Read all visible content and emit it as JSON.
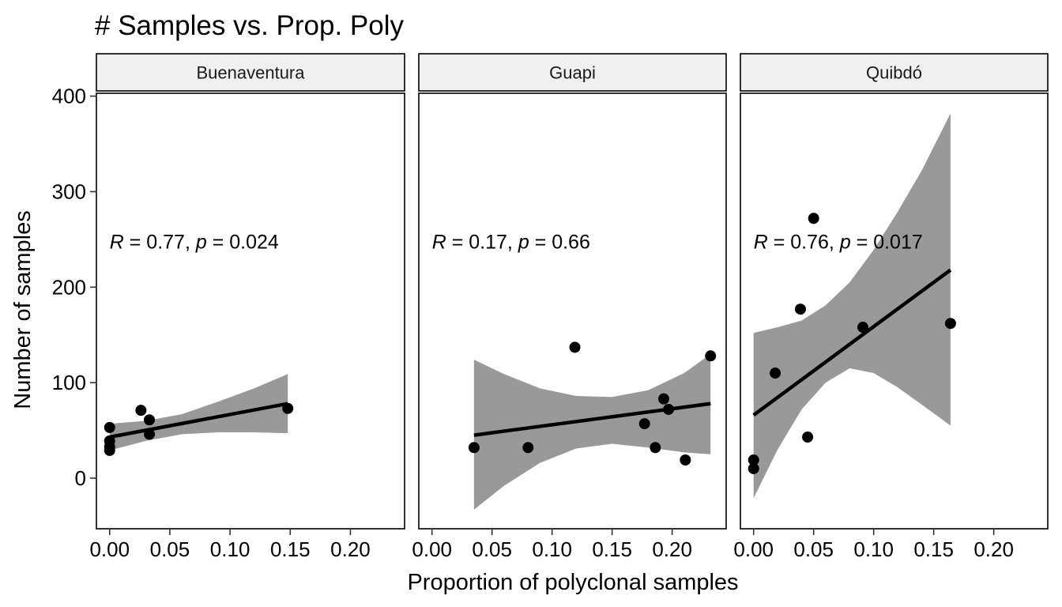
{
  "chart_data": {
    "type": "scatter",
    "title": "# Samples vs. Prop. Poly",
    "xlabel": "Proportion of polyclonal samples",
    "ylabel": "Number of samples",
    "xlim": [
      -0.011,
      0.245
    ],
    "ylim": [
      -53,
      403
    ],
    "x_ticks": [
      0.0,
      0.05,
      0.1,
      0.15,
      0.2
    ],
    "x_tick_labels": [
      "0.00",
      "0.05",
      "0.10",
      "0.15",
      "0.20"
    ],
    "y_ticks": [
      0,
      100,
      200,
      300,
      400
    ],
    "y_tick_labels": [
      "0",
      "100",
      "200",
      "300",
      "400"
    ],
    "grid": false,
    "facets": [
      {
        "label": "Buenaventura",
        "annotation": {
          "r_symbol": "R",
          "r_text": " = 0.77, ",
          "p_symbol": "p",
          "p_text": " = 0.024",
          "x": 0.0,
          "y": 248
        },
        "points": [
          {
            "x": 0.0,
            "y": 53
          },
          {
            "x": 0.0,
            "y": 39
          },
          {
            "x": 0.0,
            "y": 33
          },
          {
            "x": 0.0,
            "y": 29
          },
          {
            "x": 0.026,
            "y": 71
          },
          {
            "x": 0.033,
            "y": 61
          },
          {
            "x": 0.033,
            "y": 46
          },
          {
            "x": 0.148,
            "y": 73
          }
        ],
        "fit_line": {
          "x": [
            0.0,
            0.148
          ],
          "y": [
            43,
            78
          ]
        },
        "confidence_band": {
          "x": [
            0.0,
            0.03,
            0.06,
            0.09,
            0.12,
            0.148
          ],
          "lower": [
            29,
            39,
            46,
            48,
            48,
            47
          ],
          "upper": [
            57,
            60,
            67,
            80,
            94,
            109
          ]
        }
      },
      {
        "label": "Guapi",
        "annotation": {
          "r_symbol": "R",
          "r_text": " = 0.17, ",
          "p_symbol": "p",
          "p_text": " = 0.66",
          "x": 0.0,
          "y": 248
        },
        "points": [
          {
            "x": 0.035,
            "y": 32
          },
          {
            "x": 0.08,
            "y": 32
          },
          {
            "x": 0.119,
            "y": 137
          },
          {
            "x": 0.177,
            "y": 57
          },
          {
            "x": 0.186,
            "y": 32
          },
          {
            "x": 0.193,
            "y": 83
          },
          {
            "x": 0.197,
            "y": 72
          },
          {
            "x": 0.211,
            "y": 19
          },
          {
            "x": 0.232,
            "y": 128
          }
        ],
        "fit_line": {
          "x": [
            0.035,
            0.232
          ],
          "y": [
            45,
            78
          ]
        },
        "confidence_band": {
          "x": [
            0.035,
            0.06,
            0.09,
            0.12,
            0.15,
            0.18,
            0.21,
            0.232
          ],
          "lower": [
            -33,
            -8,
            16,
            31,
            36,
            32,
            27,
            25
          ],
          "upper": [
            124,
            109,
            94,
            86,
            85,
            92,
            110,
            130
          ]
        }
      },
      {
        "label": "Quibdó",
        "annotation": {
          "r_symbol": "R",
          "r_text": " = 0.76, ",
          "p_symbol": "p",
          "p_text": " = 0.017",
          "x": 0.0,
          "y": 248
        },
        "points": [
          {
            "x": 0.0,
            "y": 19
          },
          {
            "x": 0.0,
            "y": 10
          },
          {
            "x": 0.018,
            "y": 110
          },
          {
            "x": 0.039,
            "y": 177
          },
          {
            "x": 0.045,
            "y": 43
          },
          {
            "x": 0.05,
            "y": 272
          },
          {
            "x": 0.091,
            "y": 158
          },
          {
            "x": 0.164,
            "y": 162
          }
        ],
        "fit_line": {
          "x": [
            0.0,
            0.164
          ],
          "y": [
            66,
            218
          ]
        },
        "confidence_band": {
          "x": [
            0.0,
            0.02,
            0.04,
            0.06,
            0.08,
            0.1,
            0.12,
            0.14,
            0.164
          ],
          "lower": [
            -21,
            30,
            72,
            100,
            115,
            110,
            95,
            77,
            55
          ],
          "upper": [
            152,
            158,
            165,
            181,
            205,
            239,
            279,
            322,
            382
          ]
        }
      }
    ],
    "colors": {
      "point": "#000000",
      "fit_line": "#000000",
      "band": "#999999",
      "strip_fill": "#f0f0f0",
      "panel_border": "#000000"
    }
  }
}
